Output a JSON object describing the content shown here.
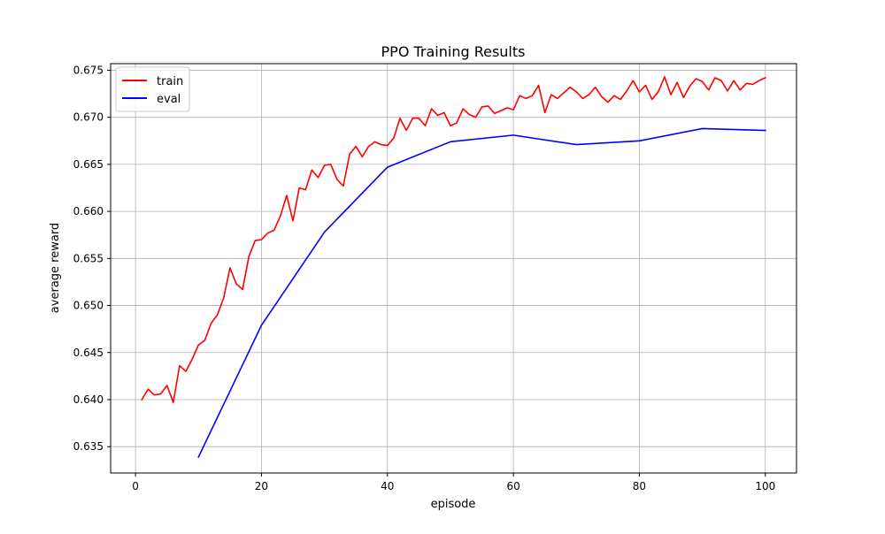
{
  "colors": {
    "train": "#ff0000",
    "eval": "#0000ff",
    "grid": "#b0b0b0",
    "axes": "#000000"
  },
  "chart_data": {
    "type": "line",
    "title": "PPO Training Results",
    "xlabel": "episode",
    "ylabel": "average reward",
    "xlim": [
      -3.95,
      104.95
    ],
    "ylim": [
      0.6322,
      0.6757
    ],
    "xticks": [
      0,
      20,
      40,
      60,
      80,
      100
    ],
    "xtick_labels": [
      "0",
      "20",
      "40",
      "60",
      "80",
      "100"
    ],
    "yticks": [
      0.635,
      0.64,
      0.645,
      0.65,
      0.655,
      0.66,
      0.665,
      0.67,
      0.675
    ],
    "ytick_labels": [
      "0.635",
      "0.640",
      "0.645",
      "0.650",
      "0.655",
      "0.660",
      "0.665",
      "0.670",
      "0.675"
    ],
    "grid": true,
    "legend_position": "top-left",
    "series": [
      {
        "name": "train",
        "color": "#ff0000",
        "x": [
          1,
          2,
          3,
          4,
          5,
          6,
          7,
          8,
          9,
          10,
          11,
          12,
          13,
          14,
          15,
          16,
          17,
          18,
          19,
          20,
          21,
          22,
          23,
          24,
          25,
          26,
          27,
          28,
          29,
          30,
          31,
          32,
          33,
          34,
          35,
          36,
          37,
          38,
          39,
          40,
          41,
          42,
          43,
          44,
          45,
          46,
          47,
          48,
          49,
          50,
          51,
          52,
          53,
          54,
          55,
          56,
          57,
          58,
          59,
          60,
          61,
          62,
          63,
          64,
          65,
          66,
          67,
          68,
          69,
          70,
          71,
          72,
          73,
          74,
          75,
          76,
          77,
          78,
          79,
          80,
          81,
          82,
          83,
          84,
          85,
          86,
          87,
          88,
          89,
          90,
          91,
          92,
          93,
          94,
          95,
          96,
          97,
          98,
          99,
          100
        ],
        "y": [
          0.64,
          0.6411,
          0.6405,
          0.6406,
          0.6415,
          0.6397,
          0.6436,
          0.643,
          0.6443,
          0.6458,
          0.6463,
          0.6481,
          0.649,
          0.6508,
          0.654,
          0.6523,
          0.6517,
          0.6552,
          0.6569,
          0.657,
          0.6577,
          0.658,
          0.6595,
          0.6617,
          0.659,
          0.6625,
          0.6623,
          0.6644,
          0.6636,
          0.6649,
          0.665,
          0.6634,
          0.6627,
          0.6661,
          0.6669,
          0.6658,
          0.6669,
          0.6674,
          0.6671,
          0.667,
          0.6678,
          0.6699,
          0.6686,
          0.6699,
          0.6699,
          0.6691,
          0.6709,
          0.6702,
          0.6705,
          0.6691,
          0.6694,
          0.6709,
          0.6703,
          0.67,
          0.6711,
          0.6712,
          0.6704,
          0.6707,
          0.671,
          0.6708,
          0.6723,
          0.672,
          0.6723,
          0.6734,
          0.6705,
          0.6724,
          0.672,
          0.6726,
          0.6732,
          0.6727,
          0.672,
          0.6724,
          0.6732,
          0.6722,
          0.6716,
          0.6723,
          0.6719,
          0.6728,
          0.6739,
          0.6727,
          0.6734,
          0.6719,
          0.6727,
          0.6743,
          0.6724,
          0.6737,
          0.6721,
          0.6733,
          0.6741,
          0.6738,
          0.6729,
          0.6742,
          0.6739,
          0.6728,
          0.6739,
          0.6729,
          0.6736,
          0.6735,
          0.6739,
          0.6742
        ]
      },
      {
        "name": "eval",
        "color": "#0000ff",
        "x": [
          10,
          20,
          30,
          40,
          50,
          60,
          70,
          80,
          90,
          100
        ],
        "y": [
          0.6339,
          0.6479,
          0.6578,
          0.6647,
          0.6674,
          0.6681,
          0.6671,
          0.6675,
          0.6688,
          0.6686
        ]
      }
    ]
  }
}
